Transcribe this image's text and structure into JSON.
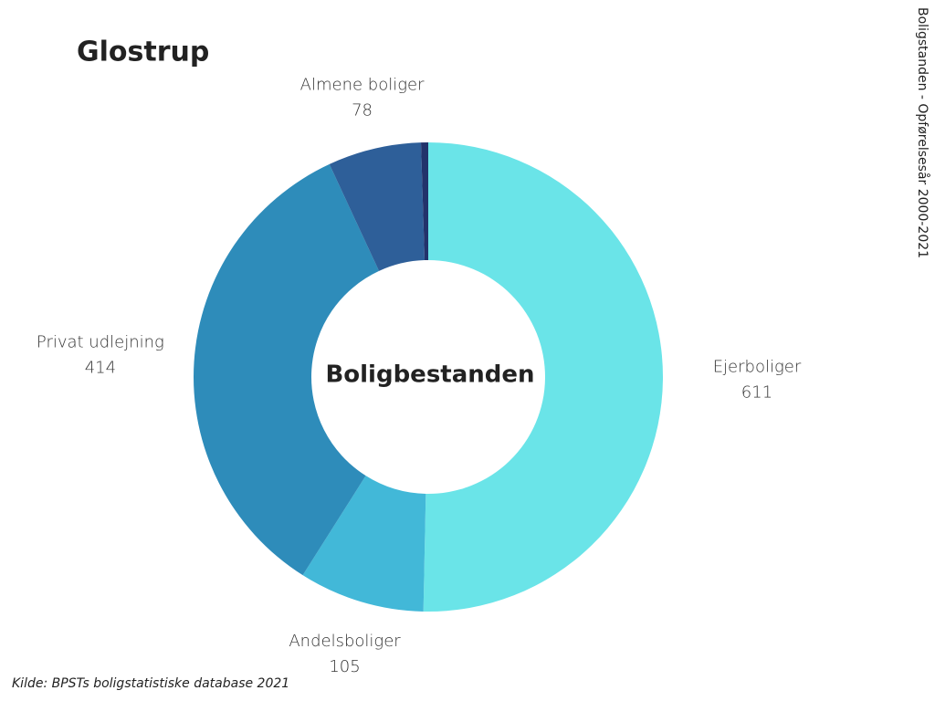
{
  "chart_data": {
    "type": "donut",
    "title": "Glostrup",
    "center_label": "Boligbestanden",
    "side_note": "Boligstanden - Opførelsesår 2000-2021",
    "source": "Kilde: BPSTs boligstatistiske database 2021",
    "categories": [
      "Ejerboliger",
      "Andelsboliger",
      "Privat udlejning",
      "Almene boliger",
      null
    ],
    "values": [
      611,
      105,
      414,
      78,
      6
    ],
    "colors": [
      "#6ae4e8",
      "#42b8d8",
      "#2e8cba",
      "#2e5f99",
      "#22336b"
    ]
  }
}
